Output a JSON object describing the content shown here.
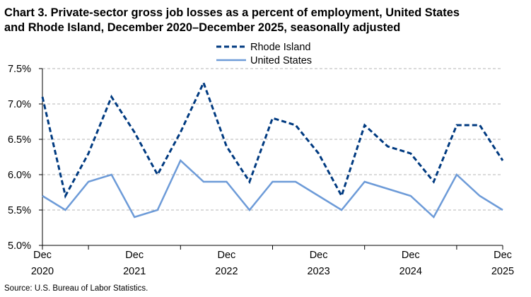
{
  "chart_data": {
    "type": "line",
    "title": "Chart 3. Private-sector gross job losses as a percent of employment, United States\nand Rhode Island, December 2020–December 2025, seasonally adjusted",
    "xlabel": "",
    "ylabel": "",
    "x": [
      "Dec 2020",
      "Mar 2021",
      "Jun 2021",
      "Sep 2021",
      "Dec 2021",
      "Mar 2022",
      "Jun 2022",
      "Sep 2022",
      "Dec 2022",
      "Mar 2023",
      "Jun 2023",
      "Sep 2023",
      "Dec 2023",
      "Mar 2024",
      "Jun 2024",
      "Sep 2024",
      "Dec 2024",
      "Mar 2025",
      "Jun 2025",
      "Sep 2025",
      "Dec 2025"
    ],
    "x_tick_labels": [
      {
        "month": "Dec",
        "year": "2020"
      },
      {
        "month": "Dec",
        "year": "2021"
      },
      {
        "month": "Dec",
        "year": "2022"
      },
      {
        "month": "Dec",
        "year": "2023"
      },
      {
        "month": "Dec",
        "year": "2024"
      },
      {
        "month": "Dec",
        "year": "2025"
      }
    ],
    "x_tick_index": [
      0,
      4,
      8,
      12,
      16,
      20
    ],
    "series": [
      {
        "name": "Rhode Island",
        "color": "#003A80",
        "style": "dashed",
        "values": [
          7.1,
          5.7,
          6.3,
          7.1,
          6.6,
          6.0,
          6.6,
          7.3,
          6.4,
          5.9,
          6.8,
          6.7,
          6.3,
          5.7,
          6.7,
          6.4,
          6.3,
          5.9,
          6.7,
          6.7,
          6.2
        ]
      },
      {
        "name": "United States",
        "color": "#6D9BD8",
        "style": "solid",
        "values": [
          5.7,
          5.5,
          5.9,
          6.0,
          5.4,
          5.5,
          6.2,
          5.9,
          5.9,
          5.5,
          5.9,
          5.9,
          5.7,
          5.5,
          5.9,
          5.8,
          5.7,
          5.4,
          6.0,
          5.7,
          5.5
        ]
      }
    ],
    "ylim": [
      5.0,
      7.5
    ],
    "y_ticks": [
      5.0,
      5.5,
      6.0,
      6.5,
      7.0,
      7.5
    ],
    "y_tick_labels": [
      "5.0%",
      "5.5%",
      "6.0%",
      "6.5%",
      "7.0%",
      "7.5%"
    ],
    "grid": "horizontal dashed",
    "legend_placement": "top-center",
    "source": "Source: U.S. Bureau of Labor Statistics."
  }
}
